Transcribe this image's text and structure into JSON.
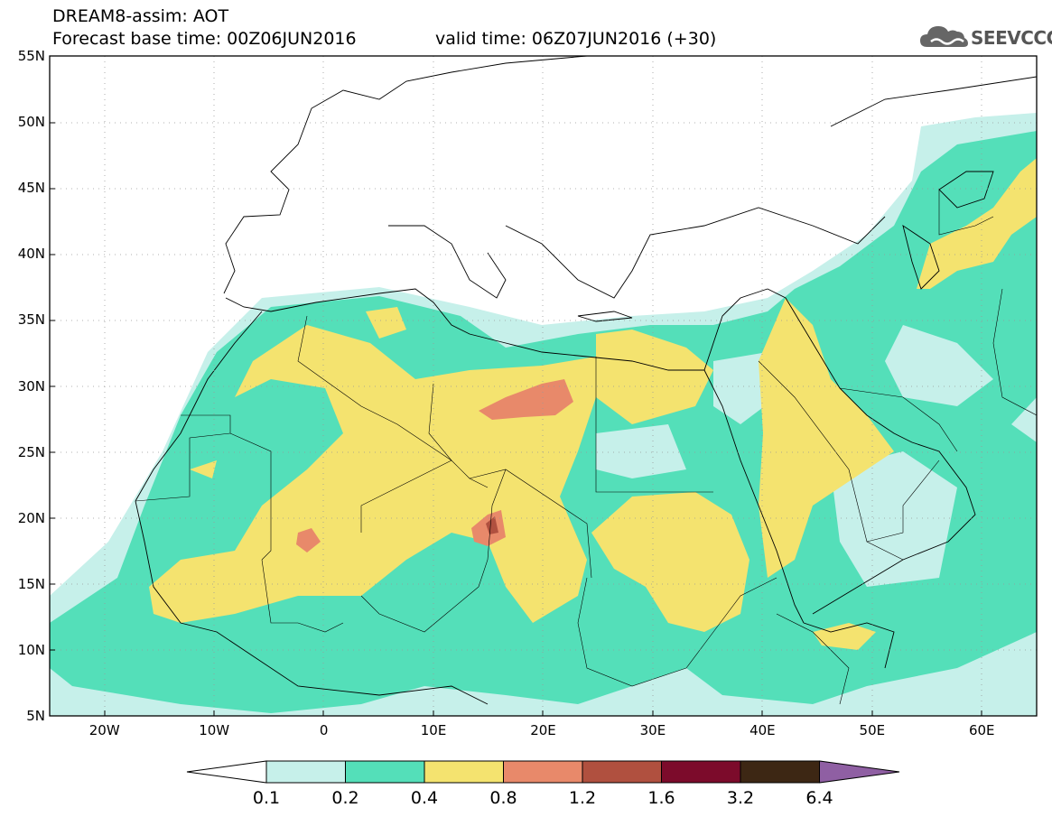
{
  "title": {
    "line1": "DREAM8-assim: AOT",
    "base": "Forecast base time: 00Z06JUN2016",
    "valid": "valid time: 06Z07JUN2016 (+30)"
  },
  "logo": {
    "text": "SEEVCCC",
    "color": "#555555"
  },
  "map": {
    "lon_range": [
      -25,
      65
    ],
    "lat_range": [
      5,
      55
    ],
    "lat_labels": [
      "55N",
      "50N",
      "45N",
      "40N",
      "35N",
      "30N",
      "25N",
      "20N",
      "15N",
      "10N",
      "5N"
    ],
    "lat_values": [
      55,
      50,
      45,
      40,
      35,
      30,
      25,
      20,
      15,
      10,
      5
    ],
    "lon_labels": [
      "20W",
      "10W",
      "0",
      "10E",
      "20E",
      "30E",
      "40E",
      "50E",
      "60E"
    ],
    "lon_values": [
      -20,
      -10,
      0,
      10,
      20,
      30,
      40,
      50,
      60
    ]
  },
  "colorbar": {
    "labels": [
      "0.1",
      "0.2",
      "0.4",
      "0.8",
      "1.2",
      "1.6",
      "3.2",
      "6.4"
    ],
    "colors": [
      "#c6f0ea",
      "#54dfb9",
      "#f4e36f",
      "#e8896a",
      "#b0503f",
      "#7c0b2b",
      "#3d2714"
    ],
    "below_color": "#ffffff",
    "above_color": "#8f5fa3"
  }
}
